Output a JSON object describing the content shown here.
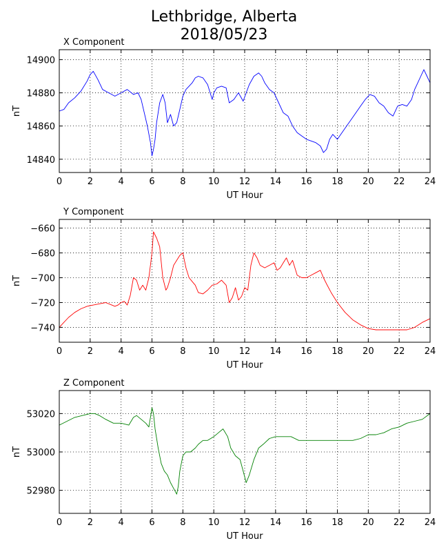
{
  "title_line1": "Lethbridge, Alberta",
  "title_line2": "2018/05/23",
  "chart_data": [
    {
      "type": "line",
      "title": "X Component",
      "xlabel": "UT Hour",
      "ylabel": "nT",
      "color": "#0000ff",
      "xlim": [
        0,
        24
      ],
      "ylim": [
        14832,
        14906
      ],
      "xticks": [
        0,
        2,
        4,
        6,
        8,
        10,
        12,
        14,
        16,
        18,
        20,
        22,
        24
      ],
      "yticks": [
        14840,
        14860,
        14880,
        14900
      ],
      "grid": true,
      "series": [
        {
          "x": [
            0,
            0.3,
            0.6,
            1.0,
            1.4,
            1.8,
            2.0,
            2.2,
            2.5,
            2.8,
            3.2,
            3.6,
            4.0,
            4.4,
            4.8,
            5.1,
            5.3,
            5.5,
            5.7,
            5.9,
            6.0,
            6.1,
            6.2,
            6.3,
            6.5,
            6.7,
            6.85,
            7.0,
            7.2,
            7.4,
            7.6,
            7.8,
            8.0,
            8.2,
            8.4,
            8.6,
            8.8,
            9.0,
            9.3,
            9.6,
            9.9,
            10.0,
            10.2,
            10.5,
            10.8,
            11.0,
            11.3,
            11.6,
            11.9,
            12.1,
            12.3,
            12.6,
            12.9,
            13.1,
            13.3,
            13.6,
            13.9,
            14.2,
            14.5,
            14.8,
            15.1,
            15.4,
            15.7,
            16.0,
            16.3,
            16.6,
            16.9,
            17.1,
            17.3,
            17.5,
            17.7,
            18.0,
            18.3,
            18.6,
            18.9,
            19.2,
            19.5,
            19.8,
            20.1,
            20.4,
            20.7,
            21.0,
            21.3,
            21.6,
            21.9,
            22.2,
            22.5,
            22.8,
            23.0,
            23.2,
            23.4,
            23.6,
            23.8,
            24.0
          ],
          "y": [
            14869,
            14870,
            14874,
            14877,
            14881,
            14887,
            14891,
            14893,
            14888,
            14882,
            14880,
            14878,
            14880,
            14882,
            14879,
            14880,
            14876,
            14868,
            14860,
            14850,
            14842,
            14846,
            14852,
            14862,
            14874,
            14879,
            14874,
            14862,
            14867,
            14860,
            14862,
            14870,
            14878,
            14882,
            14884,
            14886,
            14889,
            14890,
            14889,
            14885,
            14876,
            14880,
            14883,
            14884,
            14883,
            14874,
            14876,
            14880,
            14875,
            14880,
            14885,
            14890,
            14892,
            14890,
            14886,
            14882,
            14880,
            14874,
            14868,
            14866,
            14860,
            14856,
            14854,
            14852,
            14851,
            14850,
            14848,
            14844,
            14846,
            14852,
            14855,
            14852,
            14856,
            14860,
            14864,
            14868,
            14872,
            14876,
            14879,
            14878,
            14874,
            14872,
            14868,
            14866,
            14872,
            14873,
            14872,
            14876,
            14882,
            14886,
            14890,
            14894,
            14890,
            14886
          ]
        }
      ]
    },
    {
      "type": "line",
      "title": "Y Component",
      "xlabel": "UT Hour",
      "ylabel": "nT",
      "color": "#ff0000",
      "xlim": [
        0,
        24
      ],
      "ylim": [
        -752,
        -653
      ],
      "xticks": [
        0,
        2,
        4,
        6,
        8,
        10,
        12,
        14,
        16,
        18,
        20,
        22,
        24
      ],
      "yticks": [
        -740,
        -720,
        -700,
        -680,
        -660
      ],
      "grid": true,
      "series": [
        {
          "x": [
            0,
            0.3,
            0.6,
            1.0,
            1.4,
            1.8,
            2.2,
            2.6,
            3.0,
            3.4,
            3.6,
            3.8,
            4.0,
            4.2,
            4.4,
            4.6,
            4.8,
            5.0,
            5.2,
            5.4,
            5.6,
            5.8,
            6.0,
            6.1,
            6.3,
            6.5,
            6.7,
            6.9,
            7.0,
            7.2,
            7.4,
            7.6,
            7.8,
            8.0,
            8.2,
            8.4,
            8.6,
            8.8,
            9.0,
            9.3,
            9.6,
            9.9,
            10.2,
            10.5,
            10.8,
            11.0,
            11.2,
            11.4,
            11.6,
            11.8,
            12.0,
            12.2,
            12.4,
            12.6,
            12.8,
            13.0,
            13.3,
            13.6,
            13.9,
            14.1,
            14.3,
            14.5,
            14.7,
            14.9,
            15.1,
            15.4,
            15.7,
            16.0,
            16.3,
            16.6,
            16.9,
            17.1,
            17.3,
            17.6,
            18.0,
            18.5,
            19.0,
            19.5,
            20.0,
            20.5,
            21.0,
            21.5,
            22.0,
            22.5,
            23.0,
            23.5,
            24.0
          ],
          "y": [
            -740,
            -736,
            -732,
            -728,
            -725,
            -723,
            -722,
            -721,
            -720,
            -722,
            -723,
            -722,
            -720,
            -719,
            -722,
            -714,
            -700,
            -702,
            -710,
            -706,
            -710,
            -700,
            -680,
            -663,
            -668,
            -675,
            -700,
            -710,
            -708,
            -700,
            -690,
            -686,
            -682,
            -680,
            -692,
            -700,
            -703,
            -706,
            -712,
            -713,
            -710,
            -706,
            -705,
            -702,
            -706,
            -720,
            -716,
            -708,
            -718,
            -715,
            -708,
            -710,
            -690,
            -680,
            -684,
            -690,
            -692,
            -690,
            -688,
            -694,
            -692,
            -688,
            -684,
            -690,
            -686,
            -698,
            -700,
            -700,
            -698,
            -696,
            -694,
            -700,
            -705,
            -712,
            -720,
            -728,
            -734,
            -738,
            -741,
            -742,
            -742,
            -742,
            -742,
            -742,
            -740,
            -736,
            -733
          ]
        }
      ]
    },
    {
      "type": "line",
      "title": "Z Component",
      "xlabel": "UT Hour",
      "ylabel": "nT",
      "color": "#008000",
      "xlim": [
        0,
        24
      ],
      "ylim": [
        52968,
        53032
      ],
      "xticks": [
        0,
        2,
        4,
        6,
        8,
        10,
        12,
        14,
        16,
        18,
        20,
        22,
        24
      ],
      "yticks": [
        52980,
        53000,
        53020
      ],
      "grid": true,
      "series": [
        {
          "x": [
            0,
            0.5,
            1.0,
            1.5,
            2.0,
            2.3,
            2.6,
            3.0,
            3.5,
            4.0,
            4.5,
            4.8,
            5.0,
            5.3,
            5.6,
            5.8,
            5.9,
            6.0,
            6.1,
            6.2,
            6.4,
            6.6,
            6.8,
            7.0,
            7.2,
            7.4,
            7.6,
            7.7,
            7.8,
            8.0,
            8.2,
            8.5,
            8.8,
            9.0,
            9.3,
            9.6,
            10.0,
            10.3,
            10.6,
            10.9,
            11.1,
            11.4,
            11.7,
            11.9,
            12.1,
            12.3,
            12.6,
            12.9,
            13.2,
            13.6,
            14.0,
            14.5,
            15.0,
            15.5,
            16.0,
            16.5,
            17.0,
            17.5,
            18.0,
            18.5,
            19.0,
            19.5,
            20.0,
            20.5,
            21.0,
            21.5,
            22.0,
            22.5,
            23.0,
            23.5,
            24.0
          ],
          "y": [
            53014,
            53016,
            53018,
            53019,
            53020,
            53020,
            53019,
            53017,
            53015,
            53015,
            53014,
            53018,
            53019,
            53017,
            53015,
            53013,
            53018,
            53023,
            53020,
            53012,
            53002,
            52994,
            52990,
            52988,
            52984,
            52981,
            52978,
            52982,
            52990,
            52998,
            53000,
            53000,
            53002,
            53004,
            53006,
            53006,
            53008,
            53010,
            53012,
            53008,
            53002,
            52998,
            52996,
            52990,
            52984,
            52988,
            52996,
            53002,
            53004,
            53007,
            53008,
            53008,
            53008,
            53006,
            53006,
            53006,
            53006,
            53006,
            53006,
            53006,
            53006,
            53007,
            53009,
            53009,
            53010,
            53012,
            53013,
            53015,
            53016,
            53017,
            53020
          ]
        }
      ]
    }
  ]
}
